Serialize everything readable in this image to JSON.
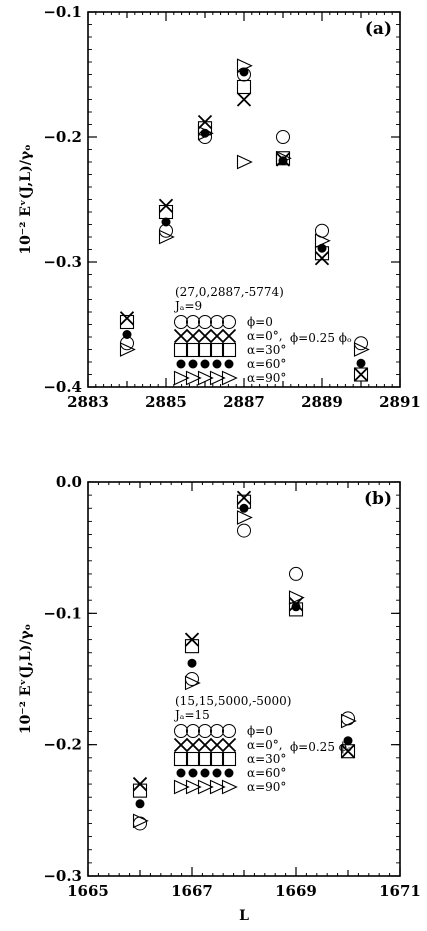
{
  "chart_data": [
    {
      "type": "scatter",
      "panel_label": "(a)",
      "ylabel": "10⁻² Eᵛ(J,L)/γₒ",
      "xlabel": "",
      "xlim": [
        2883,
        2891
      ],
      "ylim": [
        -0.4,
        -0.1
      ],
      "x_ticks": [
        "2883",
        "2885",
        "2887",
        "2889",
        "2891"
      ],
      "y_ticks": [
        "-0.1",
        "-0.2",
        "-0.3",
        "-0.4"
      ],
      "legend_title": "(27,0,2887,-5774)",
      "legend_sub": "Jₐ=9",
      "phi_note": "ϕ=0.25  ϕₒ",
      "legend": [
        "ϕ=0",
        "α=0°,",
        "α=30°",
        "α=60°",
        "α=90°"
      ],
      "series": [
        {
          "marker": "circle",
          "x": [
            2884,
            2885,
            2886,
            2887,
            2888,
            2889,
            2890
          ],
          "y": [
            -0.365,
            -0.275,
            -0.2,
            -0.15,
            -0.2,
            -0.275,
            -0.365
          ]
        },
        {
          "marker": "x",
          "x": [
            2884,
            2885,
            2886,
            2887,
            2888,
            2889,
            2890
          ],
          "y": [
            -0.345,
            -0.255,
            -0.188,
            -0.17,
            -0.218,
            -0.297,
            -0.39
          ]
        },
        {
          "marker": "square",
          "x": [
            2884,
            2885,
            2886,
            2887,
            2888,
            2889,
            2890
          ],
          "y": [
            -0.348,
            -0.26,
            -0.193,
            -0.16,
            -0.217,
            -0.293,
            -0.39
          ]
        },
        {
          "marker": "dot",
          "x": [
            2884,
            2885,
            2886,
            2887,
            2888,
            2889,
            2890
          ],
          "y": [
            -0.358,
            -0.268,
            -0.197,
            -0.148,
            -0.219,
            -0.289,
            -0.381
          ]
        },
        {
          "marker": "triangle",
          "x": [
            2884,
            2885,
            2886,
            2887,
            2887,
            2888,
            2889,
            2890
          ],
          "y": [
            -0.37,
            -0.28,
            -0.197,
            -0.143,
            -0.22,
            -0.217,
            -0.283,
            -0.37
          ]
        }
      ]
    },
    {
      "type": "scatter",
      "panel_label": "(b)",
      "ylabel": "10⁻² Eᵛ(J,L)/γₒ",
      "xlabel": "L",
      "xlim": [
        1665,
        1671
      ],
      "ylim": [
        -0.3,
        0.0
      ],
      "x_ticks": [
        "1665",
        "1667",
        "1669",
        "1671"
      ],
      "y_ticks": [
        "0.0",
        "-0.1",
        "-0.2",
        "-0.3"
      ],
      "legend_title": "(15,15,5000,-5000)",
      "legend_sub": "Jₐ=15",
      "phi_note": "ϕ=0.25  ϕₒ",
      "legend": [
        "ϕ=0",
        "α=0°,",
        "α=30°",
        "α=60°",
        "α=90°"
      ],
      "series": [
        {
          "marker": "circle",
          "x": [
            1666,
            1667,
            1668,
            1669,
            1670
          ],
          "y": [
            -0.26,
            -0.15,
            -0.037,
            -0.07,
            -0.18
          ]
        },
        {
          "marker": "x",
          "x": [
            1666,
            1667,
            1668,
            1669,
            1670
          ],
          "y": [
            -0.23,
            -0.12,
            -0.012,
            -0.093,
            -0.205
          ]
        },
        {
          "marker": "square",
          "x": [
            1666,
            1667,
            1668,
            1669,
            1670
          ],
          "y": [
            -0.235,
            -0.125,
            -0.015,
            -0.097,
            -0.205
          ]
        },
        {
          "marker": "dot",
          "x": [
            1666,
            1667,
            1668,
            1669,
            1670
          ],
          "y": [
            -0.245,
            -0.138,
            -0.02,
            -0.095,
            -0.197
          ]
        },
        {
          "marker": "triangle",
          "x": [
            1666,
            1667,
            1668,
            1669,
            1670
          ],
          "y": [
            -0.258,
            -0.153,
            -0.027,
            -0.088,
            -0.182
          ]
        }
      ]
    }
  ]
}
